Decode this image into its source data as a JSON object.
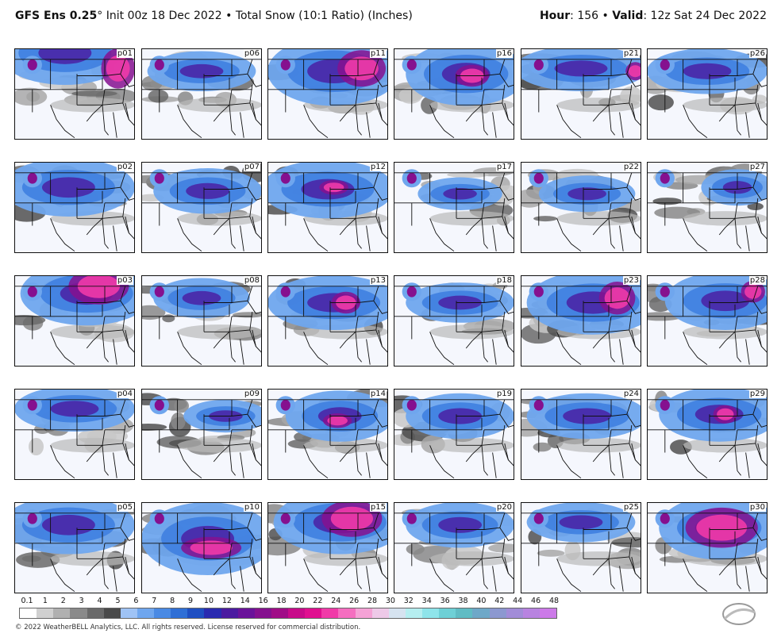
{
  "header": {
    "model": "GFS Ens 0.25",
    "degree": "°",
    "init": "Init 00z 18 Dec 2022",
    "bullet": "•",
    "product": "Total Snow (10:1 Ratio) (Inches)",
    "hour_label": "Hour",
    "hour_value": ": 156",
    "valid_label": "Valid",
    "valid_value": ": 12z Sat 24 Dec 2022"
  },
  "panels": [
    {
      "id": "p01",
      "blob": [
        [
          0.42,
          0.05,
          0.55,
          0.35
        ],
        [
          0.86,
          0.22,
          0.14,
          0.22
        ]
      ]
    },
    {
      "id": "p06",
      "blob": [
        [
          0.5,
          0.25,
          0.45,
          0.22
        ]
      ]
    },
    {
      "id": "p11",
      "blob": [
        [
          0.55,
          0.25,
          0.55,
          0.38
        ],
        [
          0.78,
          0.22,
          0.2,
          0.2
        ]
      ]
    },
    {
      "id": "p16",
      "blob": [
        [
          0.6,
          0.28,
          0.5,
          0.35
        ],
        [
          0.65,
          0.3,
          0.14,
          0.12
        ]
      ]
    },
    {
      "id": "p21",
      "blob": [
        [
          0.5,
          0.22,
          0.55,
          0.25
        ],
        [
          0.95,
          0.25,
          0.08,
          0.1
        ]
      ]
    },
    {
      "id": "p26",
      "blob": [
        [
          0.5,
          0.25,
          0.5,
          0.25
        ]
      ]
    },
    {
      "id": "p02",
      "blob": [
        [
          0.45,
          0.28,
          0.55,
          0.32
        ]
      ]
    },
    {
      "id": "p07",
      "blob": [
        [
          0.55,
          0.32,
          0.45,
          0.25
        ]
      ]
    },
    {
      "id": "p12",
      "blob": [
        [
          0.5,
          0.3,
          0.55,
          0.32
        ],
        [
          0.55,
          0.28,
          0.12,
          0.08
        ]
      ]
    },
    {
      "id": "p17",
      "blob": [
        [
          0.55,
          0.35,
          0.35,
          0.18
        ]
      ]
    },
    {
      "id": "p22",
      "blob": [
        [
          0.55,
          0.35,
          0.4,
          0.2
        ]
      ]
    },
    {
      "id": "p27",
      "blob": [
        [
          0.75,
          0.28,
          0.3,
          0.2
        ]
      ]
    },
    {
      "id": "p03",
      "blob": [
        [
          0.6,
          0.2,
          0.55,
          0.35
        ],
        [
          0.7,
          0.12,
          0.25,
          0.2
        ]
      ]
    },
    {
      "id": "p08",
      "blob": [
        [
          0.5,
          0.25,
          0.4,
          0.22
        ]
      ]
    },
    {
      "id": "p13",
      "blob": [
        [
          0.55,
          0.3,
          0.55,
          0.3
        ],
        [
          0.65,
          0.3,
          0.12,
          0.12
        ]
      ]
    },
    {
      "id": "p18",
      "blob": [
        [
          0.55,
          0.3,
          0.45,
          0.22
        ]
      ]
    },
    {
      "id": "p23",
      "blob": [
        [
          0.6,
          0.3,
          0.55,
          0.35
        ],
        [
          0.8,
          0.25,
          0.15,
          0.18
        ]
      ]
    },
    {
      "id": "p28",
      "blob": [
        [
          0.65,
          0.28,
          0.5,
          0.32
        ],
        [
          0.88,
          0.18,
          0.1,
          0.12
        ]
      ]
    },
    {
      "id": "p04",
      "blob": [
        [
          0.5,
          0.22,
          0.5,
          0.25
        ]
      ]
    },
    {
      "id": "p09",
      "blob": [
        [
          0.7,
          0.3,
          0.35,
          0.18
        ]
      ]
    },
    {
      "id": "p14",
      "blob": [
        [
          0.6,
          0.3,
          0.45,
          0.28
        ],
        [
          0.58,
          0.35,
          0.12,
          0.08
        ]
      ]
    },
    {
      "id": "p19",
      "blob": [
        [
          0.55,
          0.3,
          0.45,
          0.25
        ]
      ]
    },
    {
      "id": "p24",
      "blob": [
        [
          0.55,
          0.3,
          0.5,
          0.25
        ]
      ]
    },
    {
      "id": "p29",
      "blob": [
        [
          0.6,
          0.28,
          0.5,
          0.3
        ],
        [
          0.65,
          0.28,
          0.1,
          0.1
        ]
      ]
    },
    {
      "id": "p05",
      "blob": [
        [
          0.45,
          0.25,
          0.55,
          0.32
        ]
      ]
    },
    {
      "id": "p10",
      "blob": [
        [
          0.55,
          0.4,
          0.55,
          0.4
        ],
        [
          0.58,
          0.5,
          0.25,
          0.12
        ]
      ]
    },
    {
      "id": "p15",
      "blob": [
        [
          0.6,
          0.22,
          0.55,
          0.35
        ],
        [
          0.7,
          0.18,
          0.25,
          0.2
        ]
      ]
    },
    {
      "id": "p20",
      "blob": [
        [
          0.55,
          0.25,
          0.45,
          0.25
        ]
      ]
    },
    {
      "id": "p25",
      "blob": [
        [
          0.5,
          0.22,
          0.45,
          0.22
        ]
      ]
    },
    {
      "id": "p30",
      "blob": [
        [
          0.6,
          0.28,
          0.5,
          0.35
        ],
        [
          0.62,
          0.28,
          0.3,
          0.22
        ]
      ]
    }
  ],
  "colorbar": {
    "labels": [
      "0.1",
      "1",
      "2",
      "3",
      "4",
      "5",
      "6",
      "7",
      "8",
      "9",
      "10",
      "12",
      "14",
      "16",
      "18",
      "20",
      "22",
      "24",
      "26",
      "28",
      "30",
      "32",
      "34",
      "36",
      "38",
      "40",
      "42",
      "44",
      "46",
      "48"
    ],
    "colors": [
      "#ffffff",
      "#d0d0d0",
      "#b0b0b0",
      "#8a8a8a",
      "#6a6a6a",
      "#4a4a4a",
      "#9fc3f5",
      "#6fa6ee",
      "#4a8ae4",
      "#2f6fd6",
      "#1f4fc2",
      "#2a2ab0",
      "#4b1aa0",
      "#6a129a",
      "#85108f",
      "#a00c87",
      "#c80a8a",
      "#e00f90",
      "#f03aa8",
      "#f56ec0",
      "#f5a2d6",
      "#eec9e8",
      "#d6e3f0",
      "#b5eef0",
      "#8ee4ea",
      "#6ed0d6",
      "#60bcc4",
      "#6ea8c8",
      "#8c98d0",
      "#a28cd8",
      "#b883e0",
      "#cc7ae8"
    ]
  },
  "footer": "© 2022 WeatherBELL Analytics, LLC. All rights reserved. License reserved for commercial distribution.",
  "logo": "WeatherBELL"
}
